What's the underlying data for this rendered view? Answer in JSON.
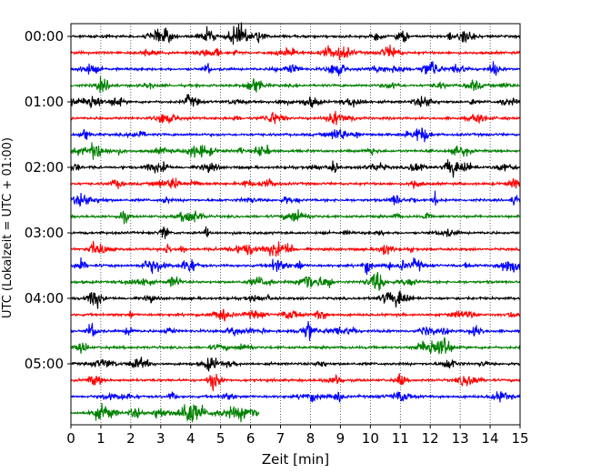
{
  "chart_data": {
    "type": "line",
    "title": "",
    "xlabel": "Zeit  [min]",
    "ylabel": "UTC (Lokalzeit = UTC + 01:00)",
    "xlim": [
      0,
      15
    ],
    "x_ticks": [
      "0",
      "1",
      "2",
      "3",
      "4",
      "5",
      "6",
      "7",
      "8",
      "9",
      "10",
      "11",
      "12",
      "13",
      "14",
      "15"
    ],
    "y_ticks": [
      {
        "label": "00:00",
        "row": 0
      },
      {
        "label": "01:00",
        "row": 4
      },
      {
        "label": "02:00",
        "row": 8
      },
      {
        "label": "03:00",
        "row": 12
      },
      {
        "label": "04:00",
        "row": 16
      },
      {
        "label": "05:00",
        "row": 20
      }
    ],
    "grid": "vertical dotted at each minute",
    "row_minutes": 15,
    "row_colors": [
      "#000000",
      "#ff0000",
      "#0000ff",
      "#008000"
    ],
    "rows": [
      {
        "start": "00:00",
        "end_min": 15
      },
      {
        "start": "00:15",
        "end_min": 15
      },
      {
        "start": "00:30",
        "end_min": 15
      },
      {
        "start": "00:45",
        "end_min": 15
      },
      {
        "start": "01:00",
        "end_min": 15
      },
      {
        "start": "01:15",
        "end_min": 15
      },
      {
        "start": "01:30",
        "end_min": 15
      },
      {
        "start": "01:45",
        "end_min": 15
      },
      {
        "start": "02:00",
        "end_min": 15
      },
      {
        "start": "02:15",
        "end_min": 15
      },
      {
        "start": "02:30",
        "end_min": 15
      },
      {
        "start": "02:45",
        "end_min": 15
      },
      {
        "start": "03:00",
        "end_min": 15
      },
      {
        "start": "03:15",
        "end_min": 15
      },
      {
        "start": "03:30",
        "end_min": 15
      },
      {
        "start": "03:45",
        "end_min": 15
      },
      {
        "start": "04:00",
        "end_min": 15
      },
      {
        "start": "04:15",
        "end_min": 15
      },
      {
        "start": "04:30",
        "end_min": 15
      },
      {
        "start": "04:45",
        "end_min": 15
      },
      {
        "start": "05:00",
        "end_min": 15
      },
      {
        "start": "05:15",
        "end_min": 15
      },
      {
        "start": "05:30",
        "end_min": 15
      },
      {
        "start": "05:45",
        "end_min": 6.3
      }
    ]
  }
}
